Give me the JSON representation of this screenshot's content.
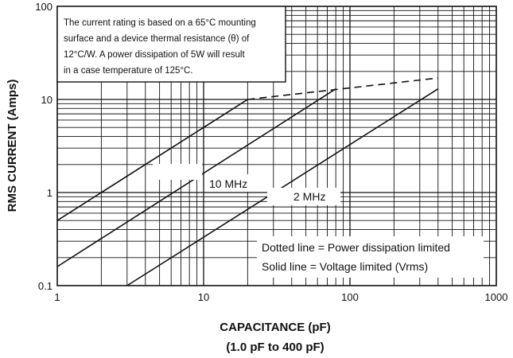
{
  "chart_data": {
    "type": "line",
    "x_scale": "log",
    "y_scale": "log",
    "xlim": [
      1,
      1000
    ],
    "ylim": [
      0.1,
      100
    ],
    "grid": true,
    "xlabel": "CAPACITANCE (pF)",
    "xlabel_sub": "(1.0 pF to 400 pF)",
    "ylabel": "RMS CURRENT (Amps)",
    "x_ticks": [
      "1",
      "10",
      "100",
      "1000"
    ],
    "y_ticks": [
      "0.1",
      "1",
      "10",
      "100"
    ],
    "series": [
      {
        "name": "",
        "style": "solid",
        "x": [
          1,
          20
        ],
        "y": [
          0.5,
          10
        ]
      },
      {
        "name": "",
        "style": "dashed",
        "x": [
          20,
          400
        ],
        "y": [
          10,
          17
        ]
      },
      {
        "name": "10 MHz",
        "style": "solid",
        "x": [
          1,
          80
        ],
        "y": [
          0.16,
          13
        ]
      },
      {
        "name": "2 MHz",
        "style": "solid",
        "x": [
          3,
          400
        ],
        "y": [
          0.1,
          13
        ]
      }
    ],
    "annotations": {
      "note_lines": [
        "The current rating is based on a 65°C mounting",
        "surface and a device thermal resistance (θ) of",
        "12°C/W. A power dissipation of 5W will result",
        "in a case temperature of 125°C."
      ],
      "label_10mhz": "10 MHz",
      "label_2mhz": "2 MHz",
      "legend_lines": [
        "Dotted line = Power dissipation limited",
        "Solid line = Voltage limited (Vrms)"
      ]
    }
  }
}
